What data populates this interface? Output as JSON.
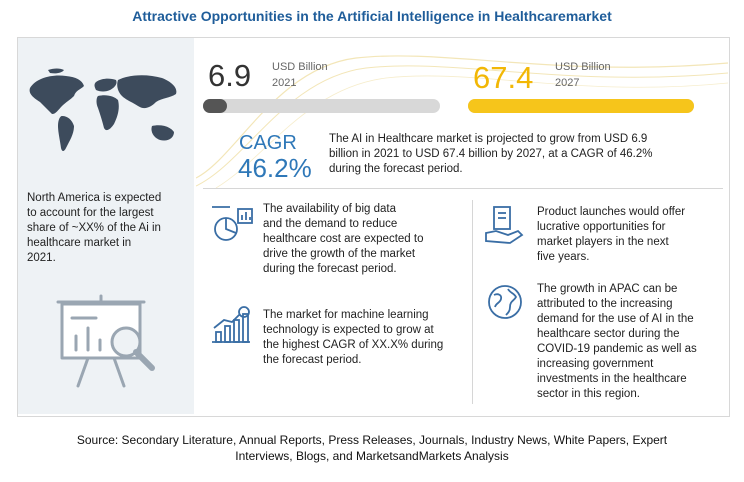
{
  "title": "Attractive Opportunities in the Artificial Intelligence in Healthcaremarket",
  "stat_2021": {
    "value": "6.9",
    "unit": "USD Billion",
    "year": "2021",
    "fill_fraction": 0.102
  },
  "stat_2027": {
    "value": "67.4",
    "unit": "USD Billion",
    "year": "2027",
    "fill_fraction": 1.0
  },
  "cagr": {
    "label": "CAGR",
    "value": "46.2%"
  },
  "summary": [
    "The AI in Healthcare market is projected to grow from USD 6.9",
    "billion  in 2021 to USD 67.4 billion  by 2027, at a CAGR of 46.2%",
    "during the forecast period."
  ],
  "north_america": [
    "North America is expected",
    "to account for the largest",
    "share of ~XX% of the Ai in",
    "healthcare market in",
    "2021."
  ],
  "insights": [
    {
      "icon": "analytics-icon",
      "lines": [
        "The availability of big data",
        "and the demand to reduce",
        "healthcare cost are expected to",
        "drive the growth of the market",
        "during the forecast period."
      ]
    },
    {
      "icon": "growth-chart-icon",
      "lines": [
        "The market for machine learning",
        "technology is expected to grow at",
        "the highest CAGR of XX.X% during",
        "the forecast period."
      ]
    },
    {
      "icon": "product-launch-icon",
      "lines": [
        "Product launches would offer",
        "lucrative opportunities for",
        "market players in the next",
        "five years."
      ]
    },
    {
      "icon": "globe-icon",
      "lines": [
        "The growth in APAC can be",
        "attributed to the increasing",
        "demand for the use of AI in the",
        "healthcare sector during the",
        "COVID-19 pandemic as well as",
        "increasing government",
        "investments in the healthcare",
        "sector in this region."
      ]
    }
  ],
  "source": [
    "Source: Secondary Literature, Annual Reports, Press Releases, Journals, Industry News, White Papers, Expert",
    "Interviews, Blogs, and MarketsandMarkets Analysis"
  ],
  "colors": {
    "title": "#1f5d9a",
    "accent_blue": "#2f78b8",
    "bar_2021": "#555555",
    "bar_2027": "#f6c51b",
    "track": "#d8d8d8",
    "panel": "#eef2f5"
  }
}
